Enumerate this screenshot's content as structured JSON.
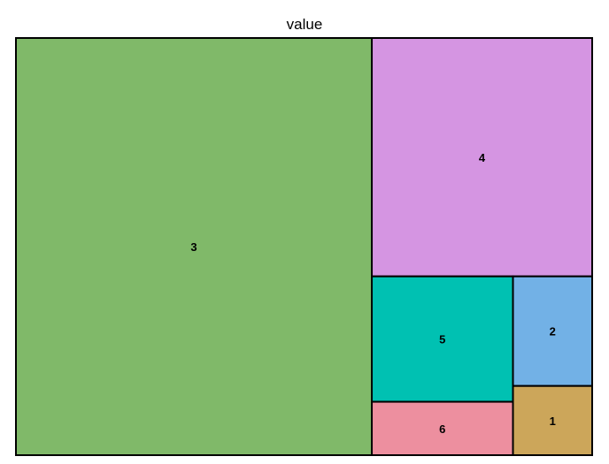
{
  "chart_data": {
    "type": "treemap",
    "title": "value",
    "items": [
      {
        "label": "3",
        "value": 13.0,
        "color": "#80B969"
      },
      {
        "label": "4",
        "value": 4.6,
        "color": "#D595E2"
      },
      {
        "label": "5",
        "value": 1.55,
        "color": "#00C1B2"
      },
      {
        "label": "2",
        "value": 0.76,
        "color": "#72B1E6"
      },
      {
        "label": "6",
        "value": 0.66,
        "color": "#ED8F9F"
      },
      {
        "label": "1",
        "value": 0.48,
        "color": "#CCA65A"
      }
    ],
    "border_color": "#000000"
  }
}
